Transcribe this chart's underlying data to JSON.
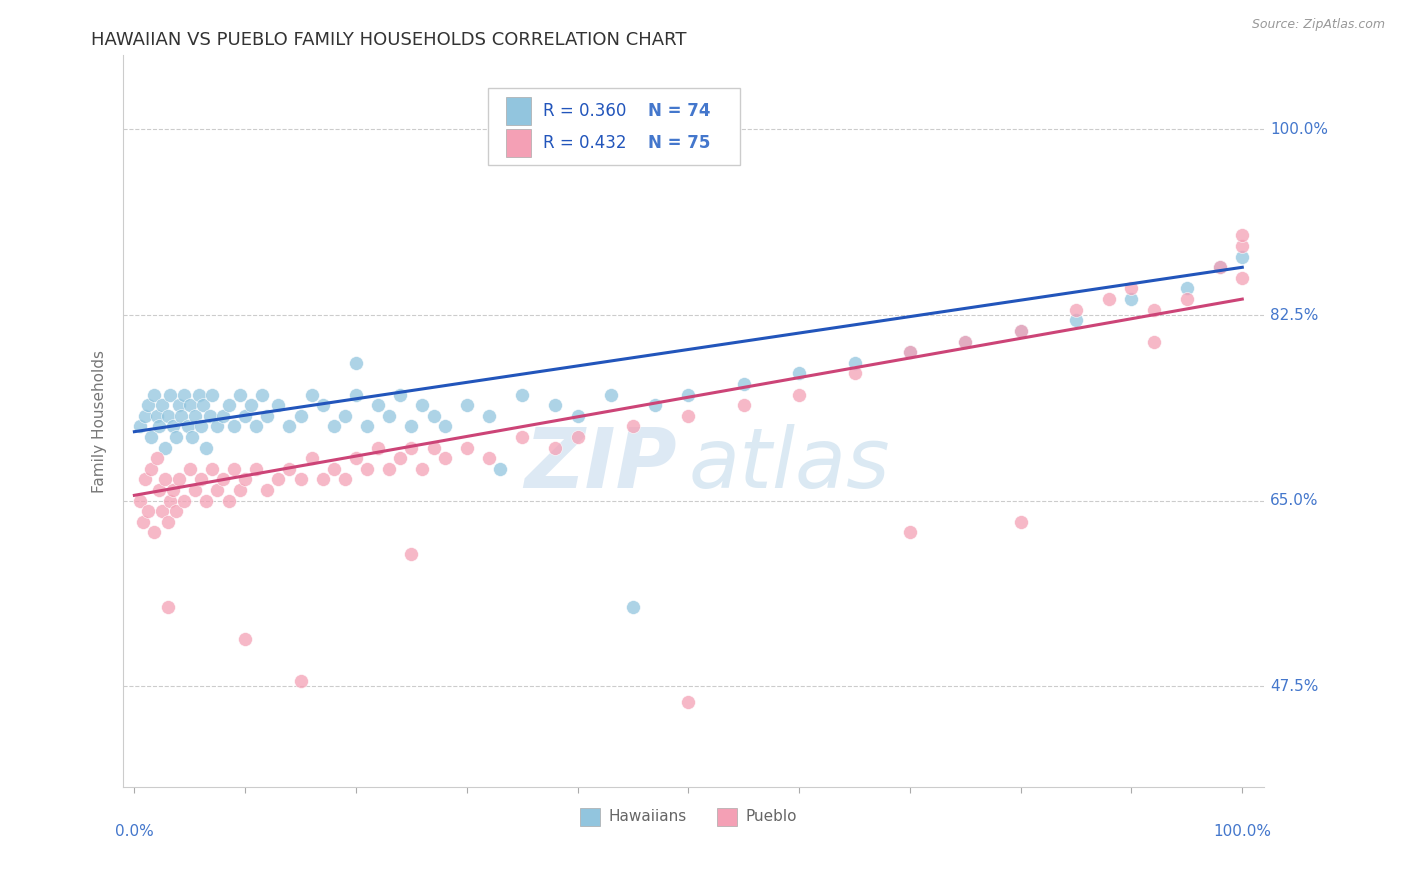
{
  "title": "HAWAIIAN VS PUEBLO FAMILY HOUSEHOLDS CORRELATION CHART",
  "source": "Source: ZipAtlas.com",
  "ylabel": "Family Households",
  "ytick_vals": [
    47.5,
    65.0,
    82.5,
    100.0
  ],
  "color_blue": "#92c5de",
  "color_pink": "#f4a0b5",
  "color_blue_line": "#2255bb",
  "color_pink_line": "#cc4477",
  "color_ticks": "#4477cc",
  "legend_r1": "R = 0.360",
  "legend_n1": "N = 74",
  "legend_r2": "R = 0.432",
  "legend_n2": "N = 75",
  "blue_intercept": 71.5,
  "blue_slope": 0.155,
  "pink_intercept": 65.5,
  "pink_slope": 0.185,
  "hx": [
    0.5,
    1.0,
    1.2,
    1.5,
    1.8,
    2.0,
    2.2,
    2.5,
    2.8,
    3.0,
    3.2,
    3.5,
    3.8,
    4.0,
    4.2,
    4.5,
    4.8,
    5.0,
    5.2,
    5.5,
    5.8,
    6.0,
    6.2,
    6.5,
    6.8,
    7.0,
    7.5,
    8.0,
    8.5,
    9.0,
    9.5,
    10.0,
    10.5,
    11.0,
    11.5,
    12.0,
    13.0,
    14.0,
    15.0,
    16.0,
    17.0,
    18.0,
    19.0,
    20.0,
    21.0,
    22.0,
    23.0,
    24.0,
    25.0,
    26.0,
    27.0,
    28.0,
    30.0,
    32.0,
    35.0,
    38.0,
    40.0,
    43.0,
    47.0,
    50.0,
    55.0,
    60.0,
    65.0,
    70.0,
    75.0,
    80.0,
    85.0,
    90.0,
    95.0,
    98.0,
    100.0,
    20.0,
    33.0,
    45.0
  ],
  "hy": [
    72,
    73,
    74,
    71,
    75,
    73,
    72,
    74,
    70,
    73,
    75,
    72,
    71,
    74,
    73,
    75,
    72,
    74,
    71,
    73,
    75,
    72,
    74,
    70,
    73,
    75,
    72,
    73,
    74,
    72,
    75,
    73,
    74,
    72,
    75,
    73,
    74,
    72,
    73,
    75,
    74,
    72,
    73,
    75,
    72,
    74,
    73,
    75,
    72,
    74,
    73,
    72,
    74,
    73,
    75,
    74,
    73,
    75,
    74,
    75,
    76,
    77,
    78,
    79,
    80,
    81,
    82,
    84,
    85,
    87,
    88,
    78,
    68,
    55
  ],
  "px": [
    0.5,
    0.8,
    1.0,
    1.2,
    1.5,
    1.8,
    2.0,
    2.2,
    2.5,
    2.8,
    3.0,
    3.2,
    3.5,
    3.8,
    4.0,
    4.5,
    5.0,
    5.5,
    6.0,
    6.5,
    7.0,
    7.5,
    8.0,
    8.5,
    9.0,
    9.5,
    10.0,
    11.0,
    12.0,
    13.0,
    14.0,
    15.0,
    16.0,
    17.0,
    18.0,
    19.0,
    20.0,
    21.0,
    22.0,
    23.0,
    24.0,
    25.0,
    26.0,
    27.0,
    28.0,
    30.0,
    32.0,
    35.0,
    38.0,
    40.0,
    45.0,
    50.0,
    55.0,
    60.0,
    65.0,
    70.0,
    75.0,
    80.0,
    85.0,
    88.0,
    90.0,
    92.0,
    95.0,
    98.0,
    100.0,
    100.0,
    100.0,
    3.0,
    10.0,
    15.0,
    25.0,
    50.0,
    70.0,
    80.0,
    92.0
  ],
  "py": [
    65,
    63,
    67,
    64,
    68,
    62,
    69,
    66,
    64,
    67,
    63,
    65,
    66,
    64,
    67,
    65,
    68,
    66,
    67,
    65,
    68,
    66,
    67,
    65,
    68,
    66,
    67,
    68,
    66,
    67,
    68,
    67,
    69,
    67,
    68,
    67,
    69,
    68,
    70,
    68,
    69,
    70,
    68,
    70,
    69,
    70,
    69,
    71,
    70,
    71,
    72,
    73,
    74,
    75,
    77,
    79,
    80,
    81,
    83,
    84,
    85,
    83,
    84,
    87,
    89,
    86,
    90,
    55,
    52,
    48,
    60,
    46,
    62,
    63,
    80
  ]
}
